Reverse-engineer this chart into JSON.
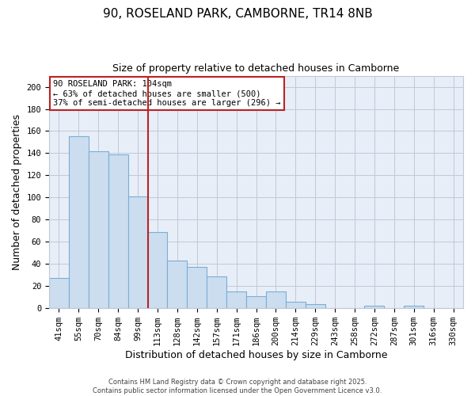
{
  "title": "90, ROSELAND PARK, CAMBORNE, TR14 8NB",
  "subtitle": "Size of property relative to detached houses in Camborne",
  "xlabel": "Distribution of detached houses by size in Camborne",
  "ylabel": "Number of detached properties",
  "categories": [
    "41sqm",
    "55sqm",
    "70sqm",
    "84sqm",
    "99sqm",
    "113sqm",
    "128sqm",
    "142sqm",
    "157sqm",
    "171sqm",
    "186sqm",
    "200sqm",
    "214sqm",
    "229sqm",
    "243sqm",
    "258sqm",
    "272sqm",
    "287sqm",
    "301sqm",
    "316sqm",
    "330sqm"
  ],
  "values": [
    27,
    155,
    142,
    139,
    101,
    69,
    43,
    37,
    29,
    15,
    11,
    15,
    6,
    4,
    0,
    0,
    2,
    0,
    2,
    0,
    0
  ],
  "bar_color": "#ccddf0",
  "bar_edge_color": "#7aaed4",
  "plot_bg_color": "#e8eef8",
  "ylim": [
    0,
    210
  ],
  "yticks": [
    0,
    20,
    40,
    60,
    80,
    100,
    120,
    140,
    160,
    180,
    200
  ],
  "vline_x": 4.5,
  "vline_color": "#bb2222",
  "annotation_title": "90 ROSELAND PARK: 104sqm",
  "annotation_line1": "← 63% of detached houses are smaller (500)",
  "annotation_line2": "37% of semi-detached houses are larger (296) →",
  "annotation_box_color": "#ffffff",
  "annotation_box_edge": "#bb2222",
  "footer1": "Contains HM Land Registry data © Crown copyright and database right 2025.",
  "footer2": "Contains public sector information licensed under the Open Government Licence v3.0.",
  "background_color": "#ffffff",
  "grid_color": "#c0c8d8",
  "title_fontsize": 11,
  "subtitle_fontsize": 9,
  "axis_label_fontsize": 9,
  "tick_fontsize": 7.5,
  "footer_fontsize": 6
}
